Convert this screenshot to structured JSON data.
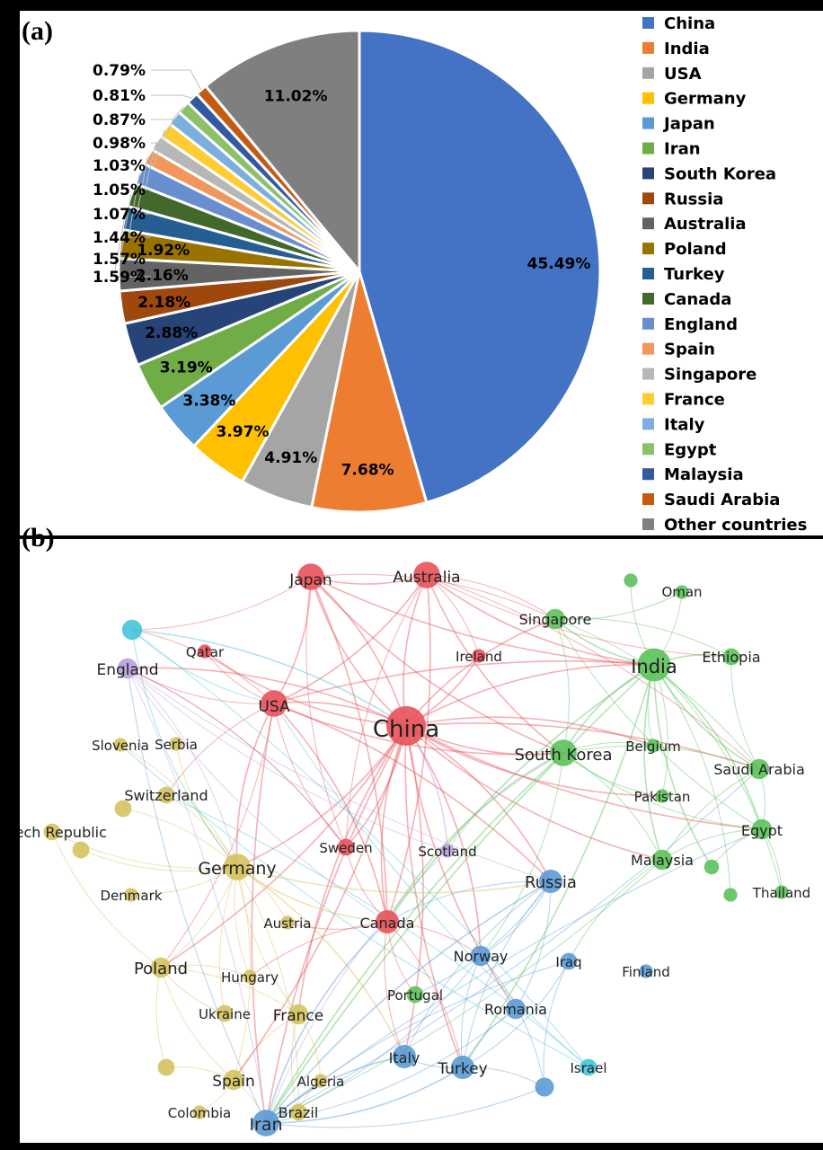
{
  "panel_a_tag": "(a)",
  "panel_b_tag": "(b)",
  "chart_data": [
    {
      "type": "pie",
      "panel": "(a)",
      "categories": [
        "China",
        "India",
        "USA",
        "Germany",
        "Japan",
        "Iran",
        "South Korea",
        "Russia",
        "Australia",
        "Poland",
        "Turkey",
        "Canada",
        "England",
        "Spain",
        "Singapore",
        "France",
        "Italy",
        "Egypt",
        "Malaysia",
        "Saudi Arabia",
        "Other countries"
      ],
      "values": [
        45.49,
        7.68,
        4.91,
        3.97,
        3.38,
        3.19,
        2.88,
        2.18,
        2.16,
        1.92,
        1.59,
        1.57,
        1.44,
        1.07,
        1.05,
        1.03,
        0.98,
        0.87,
        0.81,
        0.79,
        11.02
      ],
      "labels": [
        "45.49%",
        "7.68%",
        "4.91%",
        "3.97%",
        "3.38%",
        "3.19%",
        "2.88%",
        "2.18%",
        "2.16%",
        "1.92%",
        "1.59%",
        "1.57%",
        "1.44%",
        "1.07%",
        "1.05%",
        "1.03%",
        "0.98%",
        "0.87%",
        "0.81%",
        "0.79%",
        "11.02%"
      ],
      "colors": [
        "#4472C4",
        "#ED7D31",
        "#A5A5A5",
        "#FFC000",
        "#5B9BD5",
        "#70AD47",
        "#264478",
        "#9E480E",
        "#636363",
        "#997300",
        "#255E91",
        "#43682B",
        "#698ED0",
        "#F1975A",
        "#B7B7B7",
        "#FFCD33",
        "#7CAFDD",
        "#8CC168",
        "#335AA1",
        "#C55A11",
        "#7F7F7F"
      ],
      "legend_position": "right"
    },
    {
      "type": "network",
      "panel": "(b)",
      "clusters": {
        "red": "#E8525A",
        "green": "#5CC25A",
        "yellow": "#D4C25E",
        "blue": "#5B9BD5",
        "cyan": "#45C4D8",
        "purple": "#B9A0DC"
      },
      "nodes": [
        {
          "label": "China",
          "cluster": "red",
          "size": 5
        },
        {
          "label": "Japan",
          "cluster": "red",
          "size": 3
        },
        {
          "label": "Australia",
          "cluster": "red",
          "size": 3
        },
        {
          "label": "USA",
          "cluster": "red",
          "size": 3
        },
        {
          "label": "Qatar",
          "cluster": "red",
          "size": 1
        },
        {
          "label": "Ireland",
          "cluster": "red",
          "size": 1
        },
        {
          "label": "Sweden",
          "cluster": "red",
          "size": 1.5
        },
        {
          "label": "Canada",
          "cluster": "red",
          "size": 2.5
        },
        {
          "label": "India",
          "cluster": "green",
          "size": 4
        },
        {
          "label": "Singapore",
          "cluster": "green",
          "size": 2
        },
        {
          "label": "Oman",
          "cluster": "green",
          "size": 1
        },
        {
          "label": "Ethiopia",
          "cluster": "green",
          "size": 1.5
        },
        {
          "label": "South Korea",
          "cluster": "green",
          "size": 3
        },
        {
          "label": "Belgium",
          "cluster": "green",
          "size": 1
        },
        {
          "label": "Saudi Arabia",
          "cluster": "green",
          "size": 2
        },
        {
          "label": "Pakistan",
          "cluster": "green",
          "size": 1
        },
        {
          "label": "Egypt",
          "cluster": "green",
          "size": 2
        },
        {
          "label": "Malaysia",
          "cluster": "green",
          "size": 2
        },
        {
          "label": "Thailand",
          "cluster": "green",
          "size": 1
        },
        {
          "label": "Portugal",
          "cluster": "green",
          "size": 1.5
        },
        {
          "label": "",
          "cluster": "green",
          "size": 1
        },
        {
          "label": "",
          "cluster": "green",
          "size": 1.2
        },
        {
          "label": "",
          "cluster": "green",
          "size": 1
        },
        {
          "label": "Germany",
          "cluster": "yellow",
          "size": 3
        },
        {
          "label": "Slovenia",
          "cluster": "yellow",
          "size": 1
        },
        {
          "label": "Serbia",
          "cluster": "yellow",
          "size": 1
        },
        {
          "label": "Switzerland",
          "cluster": "yellow",
          "size": 1.5
        },
        {
          "label": "Czech Republic",
          "cluster": "yellow",
          "size": 1.5
        },
        {
          "label": "Denmark",
          "cluster": "yellow",
          "size": 1
        },
        {
          "label": "Austria",
          "cluster": "yellow",
          "size": 1
        },
        {
          "label": "Poland",
          "cluster": "yellow",
          "size": 2
        },
        {
          "label": "Hungary",
          "cluster": "yellow",
          "size": 1
        },
        {
          "label": "Ukraine",
          "cluster": "yellow",
          "size": 1.5
        },
        {
          "label": "France",
          "cluster": "yellow",
          "size": 2
        },
        {
          "label": "Spain",
          "cluster": "yellow",
          "size": 2
        },
        {
          "label": "Algeria",
          "cluster": "yellow",
          "size": 1
        },
        {
          "label": "Colombia",
          "cluster": "yellow",
          "size": 1
        },
        {
          "label": "Brazil",
          "cluster": "yellow",
          "size": 1.5
        },
        {
          "label": "",
          "cluster": "yellow",
          "size": 1.5
        },
        {
          "label": "",
          "cluster": "yellow",
          "size": 1.5
        },
        {
          "label": "",
          "cluster": "yellow",
          "size": 1.5
        },
        {
          "label": "Iran",
          "cluster": "blue",
          "size": 3
        },
        {
          "label": "Russia",
          "cluster": "blue",
          "size": 2.5
        },
        {
          "label": "Norway",
          "cluster": "blue",
          "size": 2
        },
        {
          "label": "Iraq",
          "cluster": "blue",
          "size": 1.5
        },
        {
          "label": "Finland",
          "cluster": "blue",
          "size": 1
        },
        {
          "label": "Romania",
          "cluster": "blue",
          "size": 2
        },
        {
          "label": "Italy",
          "cluster": "blue",
          "size": 2.5
        },
        {
          "label": "Turkey",
          "cluster": "blue",
          "size": 2.5
        },
        {
          "label": "",
          "cluster": "blue",
          "size": 1.8
        },
        {
          "label": "Israel",
          "cluster": "cyan",
          "size": 1.5
        },
        {
          "label": "",
          "cluster": "cyan",
          "size": 2
        },
        {
          "label": "England",
          "cluster": "purple",
          "size": 2
        },
        {
          "label": "Scotland",
          "cluster": "purple",
          "size": 1
        }
      ]
    }
  ]
}
